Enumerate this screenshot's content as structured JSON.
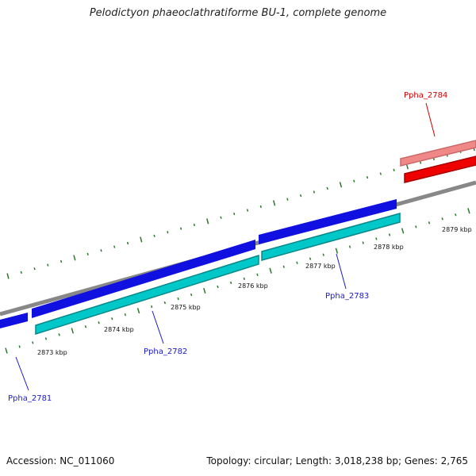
{
  "title": "Pelodictyon phaeoclathratiforme BU-1, complete genome",
  "footer": {
    "accession": "Accession: NC_011060",
    "summary": "Topology: circular; Length: 3,018,238 bp; Genes: 2,765"
  },
  "colors": {
    "backbone": "#888888",
    "forward_cds": "#1010e0",
    "forward_cds_light": "#00c8c8",
    "forward_label": "#1a1acc",
    "reverse_cds": "#ee0000",
    "reverse_cds_light": "#f08888",
    "reverse_label": "#cc0000",
    "ticks": "#2a7a2a"
  },
  "kbp_labels": [
    "2873 kbp",
    "2874 kbp",
    "2875 kbp",
    "2876 kbp",
    "2877 kbp",
    "2878 kbp",
    "2879 kbp"
  ],
  "genes": [
    {
      "label": "Ppha_2781",
      "strand": "forward"
    },
    {
      "label": "Ppha_2782",
      "strand": "forward"
    },
    {
      "label": "Ppha_2783",
      "strand": "forward"
    },
    {
      "label": "Ppha_2784",
      "strand": "reverse"
    }
  ]
}
